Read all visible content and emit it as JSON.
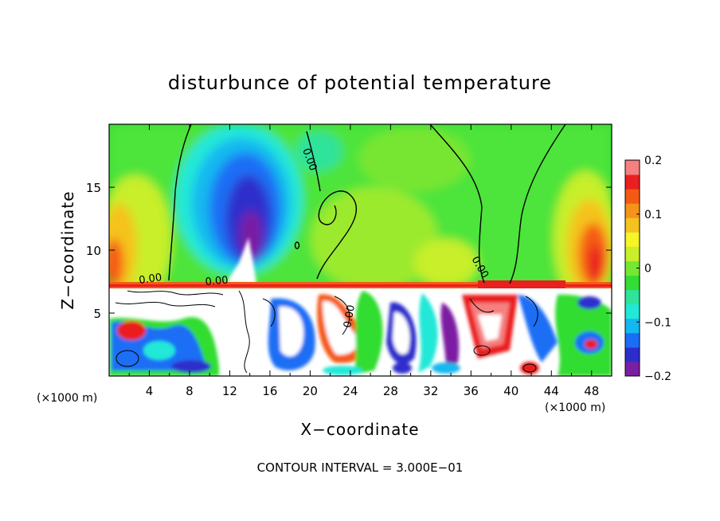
{
  "chart_data": {
    "type": "heatmap",
    "title": "disturbunce of potential temperature",
    "xlabel": "X−coordinate",
    "ylabel": "Z−coordinate",
    "x_unit_left": "(×1000 m)",
    "x_unit_right": "(×1000 m)",
    "xlim": [
      0,
      50
    ],
    "ylim": [
      0,
      20
    ],
    "x_ticks": [
      4,
      8,
      12,
      16,
      20,
      24,
      28,
      32,
      36,
      40,
      44,
      48
    ],
    "y_ticks": [
      5,
      10,
      15
    ],
    "colorbar": {
      "range": [
        -0.2,
        0.2
      ],
      "ticks": [
        {
          "value": 0.2,
          "label": "0.2"
        },
        {
          "value": 0.1,
          "label": "0.1"
        },
        {
          "value": 0.0,
          "label": "0"
        },
        {
          "value": -0.1,
          "label": "−0.1"
        },
        {
          "value": -0.2,
          "label": "−0.2"
        }
      ],
      "colors": [
        "#7b1fa2",
        "#2d2dcc",
        "#1a6ef5",
        "#14b8f0",
        "#22e8d8",
        "#2fe39a",
        "#33dd33",
        "#77e633",
        "#c8ef2a",
        "#f5f528",
        "#f5c31f",
        "#f59418",
        "#f55a14",
        "#ea1f1f",
        "#f58080"
      ]
    },
    "contour_interval_text": "CONTOUR INTERVAL = 3.000E−01",
    "contour_labels": [
      "0.00",
      "0.00",
      "0.00",
      "0.00",
      "0.00"
    ],
    "features": [
      {
        "x": 13.5,
        "z": 12,
        "value": -0.2,
        "kind": "cold anomaly"
      },
      {
        "x": 47,
        "z": 10,
        "value": 0.15,
        "kind": "warm anomaly"
      },
      {
        "x": 0.5,
        "z": 10,
        "value": 0.14,
        "kind": "warm anomaly"
      },
      {
        "x": 38,
        "z": 7.3,
        "value": 0.2,
        "kind": "warm layer"
      }
    ]
  }
}
